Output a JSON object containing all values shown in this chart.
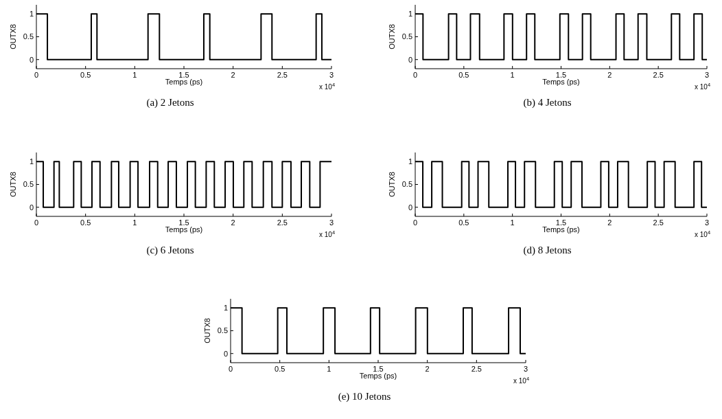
{
  "chart_data": [
    {
      "type": "step",
      "title": "(a) 2 Jetons",
      "xlabel": "Temps (ps)",
      "ylabel": "OUTX8",
      "xlim": [
        0,
        3
      ],
      "xticks": [
        0,
        0.5,
        1,
        1.5,
        2,
        2.5,
        3
      ],
      "ylim": [
        -0.2,
        1.2
      ],
      "yticks": [
        0,
        0.5,
        1
      ],
      "annotations": [
        "x 10$^{4}$"
      ],
      "color": "#000000",
      "x": [
        0,
        0.112,
        0.558,
        0.616,
        1.135,
        1.251,
        1.702,
        1.763,
        2.284,
        2.395,
        2.844,
        2.902,
        3
      ],
      "values": [
        1,
        0,
        1,
        0,
        1,
        0,
        1,
        0,
        1,
        0,
        1,
        0,
        0
      ]
    },
    {
      "type": "step",
      "title": "(b) 4 Jetons",
      "xlabel": "Temps (ps)",
      "ylabel": "OUTX8",
      "xlim": [
        0,
        3
      ],
      "xticks": [
        0,
        0.5,
        1,
        1.5,
        2,
        2.5,
        3
      ],
      "ylim": [
        -0.2,
        1.2
      ],
      "yticks": [
        0,
        0.5,
        1
      ],
      "annotations": [
        "x 10$^{4}$"
      ],
      "color": "#000000",
      "x": [
        0,
        0.08,
        0.343,
        0.426,
        0.568,
        0.662,
        0.913,
        1.001,
        1.145,
        1.23,
        1.488,
        1.576,
        1.72,
        1.805,
        2.065,
        2.148,
        2.292,
        2.382,
        2.635,
        2.72,
        2.867,
        2.952,
        3
      ],
      "values": [
        1,
        0,
        1,
        0,
        1,
        0,
        1,
        0,
        1,
        0,
        1,
        0,
        1,
        0,
        1,
        0,
        1,
        0,
        1,
        0,
        1,
        0,
        0
      ]
    },
    {
      "type": "step",
      "title": "(c) 6 Jetons",
      "xlabel": "Temps (ps)",
      "ylabel": "OUTX8",
      "xlim": [
        0,
        3
      ],
      "xticks": [
        0,
        0.5,
        1,
        1.5,
        2,
        2.5,
        3
      ],
      "ylim": [
        -0.2,
        1.2
      ],
      "yticks": [
        0,
        0.5,
        1
      ],
      "annotations": [
        "x 10$^{4}$"
      ],
      "color": "#000000",
      "x": [
        0,
        0.07,
        0.179,
        0.233,
        0.379,
        0.456,
        0.565,
        0.647,
        0.763,
        0.837,
        0.953,
        1.033,
        1.151,
        1.233,
        1.34,
        1.423,
        1.535,
        1.616,
        1.726,
        1.809,
        1.919,
        2.002,
        2.109,
        2.193,
        2.307,
        2.395,
        2.5,
        2.588,
        2.693,
        2.779,
        2.884,
        3
      ],
      "values": [
        1,
        0,
        1,
        0,
        1,
        0,
        1,
        0,
        1,
        0,
        1,
        0,
        1,
        0,
        1,
        0,
        1,
        0,
        1,
        0,
        1,
        0,
        1,
        0,
        1,
        0,
        1,
        0,
        1,
        0,
        1,
        1
      ]
    },
    {
      "type": "step",
      "title": "(d) 8 Jetons",
      "xlabel": "Temps (ps)",
      "ylabel": "OUTX8",
      "xlim": [
        0,
        3
      ],
      "xticks": [
        0,
        0.5,
        1,
        1.5,
        2,
        2.5,
        3
      ],
      "ylim": [
        -0.2,
        1.2
      ],
      "yticks": [
        0,
        0.5,
        1
      ],
      "annotations": [
        "x 10$^{4}$"
      ],
      "color": "#000000",
      "x": [
        0,
        0.078,
        0.17,
        0.279,
        0.478,
        0.553,
        0.646,
        0.757,
        0.953,
        1.031,
        1.124,
        1.237,
        1.431,
        1.512,
        1.604,
        1.715,
        1.909,
        1.99,
        2.082,
        2.193,
        2.387,
        2.467,
        2.56,
        2.673,
        2.867,
        2.945,
        3
      ],
      "values": [
        1,
        0,
        1,
        0,
        1,
        0,
        1,
        0,
        1,
        0,
        1,
        0,
        1,
        0,
        1,
        0,
        1,
        0,
        1,
        0,
        1,
        0,
        1,
        0,
        1,
        0,
        0
      ]
    },
    {
      "type": "step",
      "title": "(e) 10 Jetons",
      "xlabel": "Temps (ps)",
      "ylabel": "OUTX8",
      "xlim": [
        0,
        3
      ],
      "xticks": [
        0,
        0.5,
        1,
        1.5,
        2,
        2.5,
        3
      ],
      "ylim": [
        -0.2,
        1.2
      ],
      "yticks": [
        0,
        0.5,
        1
      ],
      "annotations": [
        "x 10$^{4}$"
      ],
      "color": "#000000",
      "x": [
        0,
        0.116,
        0.479,
        0.572,
        0.943,
        1.061,
        1.422,
        1.515,
        1.881,
        2.001,
        2.365,
        2.455,
        2.826,
        2.944,
        3
      ],
      "values": [
        1,
        0,
        1,
        0,
        1,
        0,
        1,
        0,
        1,
        0,
        1,
        0,
        1,
        0,
        0
      ]
    }
  ]
}
